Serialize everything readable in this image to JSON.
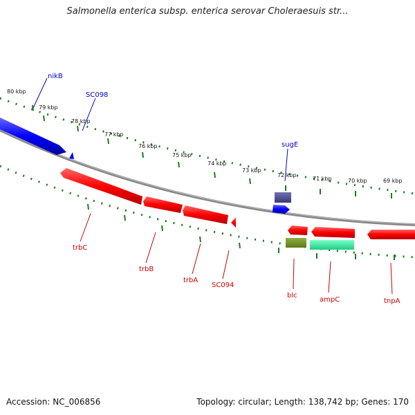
{
  "title": "Salmonella enterica subsp. enterica serovar Choleraesuis str...",
  "footer": {
    "accession": "Accession: NC_006856",
    "summary": "Topology: circular; Length: 138,742 bp; Genes: 170"
  },
  "scale_labels": [
    "80 kbp",
    "79 kbp",
    "78 kbp",
    "77 kbp",
    "76 kbp",
    "75 kbp",
    "74 kbp",
    "73 kbp",
    "72 kbp",
    "71 kbp",
    "70 kbp",
    "69 kbp"
  ],
  "genes_forward": [
    {
      "name": "nikB",
      "color": "#0000cc"
    },
    {
      "name": "SC098",
      "color": "#0000cc"
    },
    {
      "name": "sugE",
      "color": "#0000cc"
    }
  ],
  "genes_reverse": [
    {
      "name": "trbC",
      "color": "#cc0000"
    },
    {
      "name": "trbB",
      "color": "#cc0000"
    },
    {
      "name": "trbA",
      "color": "#cc0000"
    },
    {
      "name": "SC094",
      "color": "#cc0000"
    },
    {
      "name": "blc",
      "color": "#cc0000"
    },
    {
      "name": "ampC",
      "color": "#cc0000"
    },
    {
      "name": "tnpA",
      "color": "#cc0000"
    }
  ],
  "colors": {
    "forward_strand": "#0000ff",
    "reverse_strand": "#ff0000",
    "backbone": "#888888",
    "ticks": "#1a7a1a",
    "sugE_box": "#4a4a8c",
    "blc_box": "#6b8a23",
    "ampC_box": "#33e6a0"
  }
}
